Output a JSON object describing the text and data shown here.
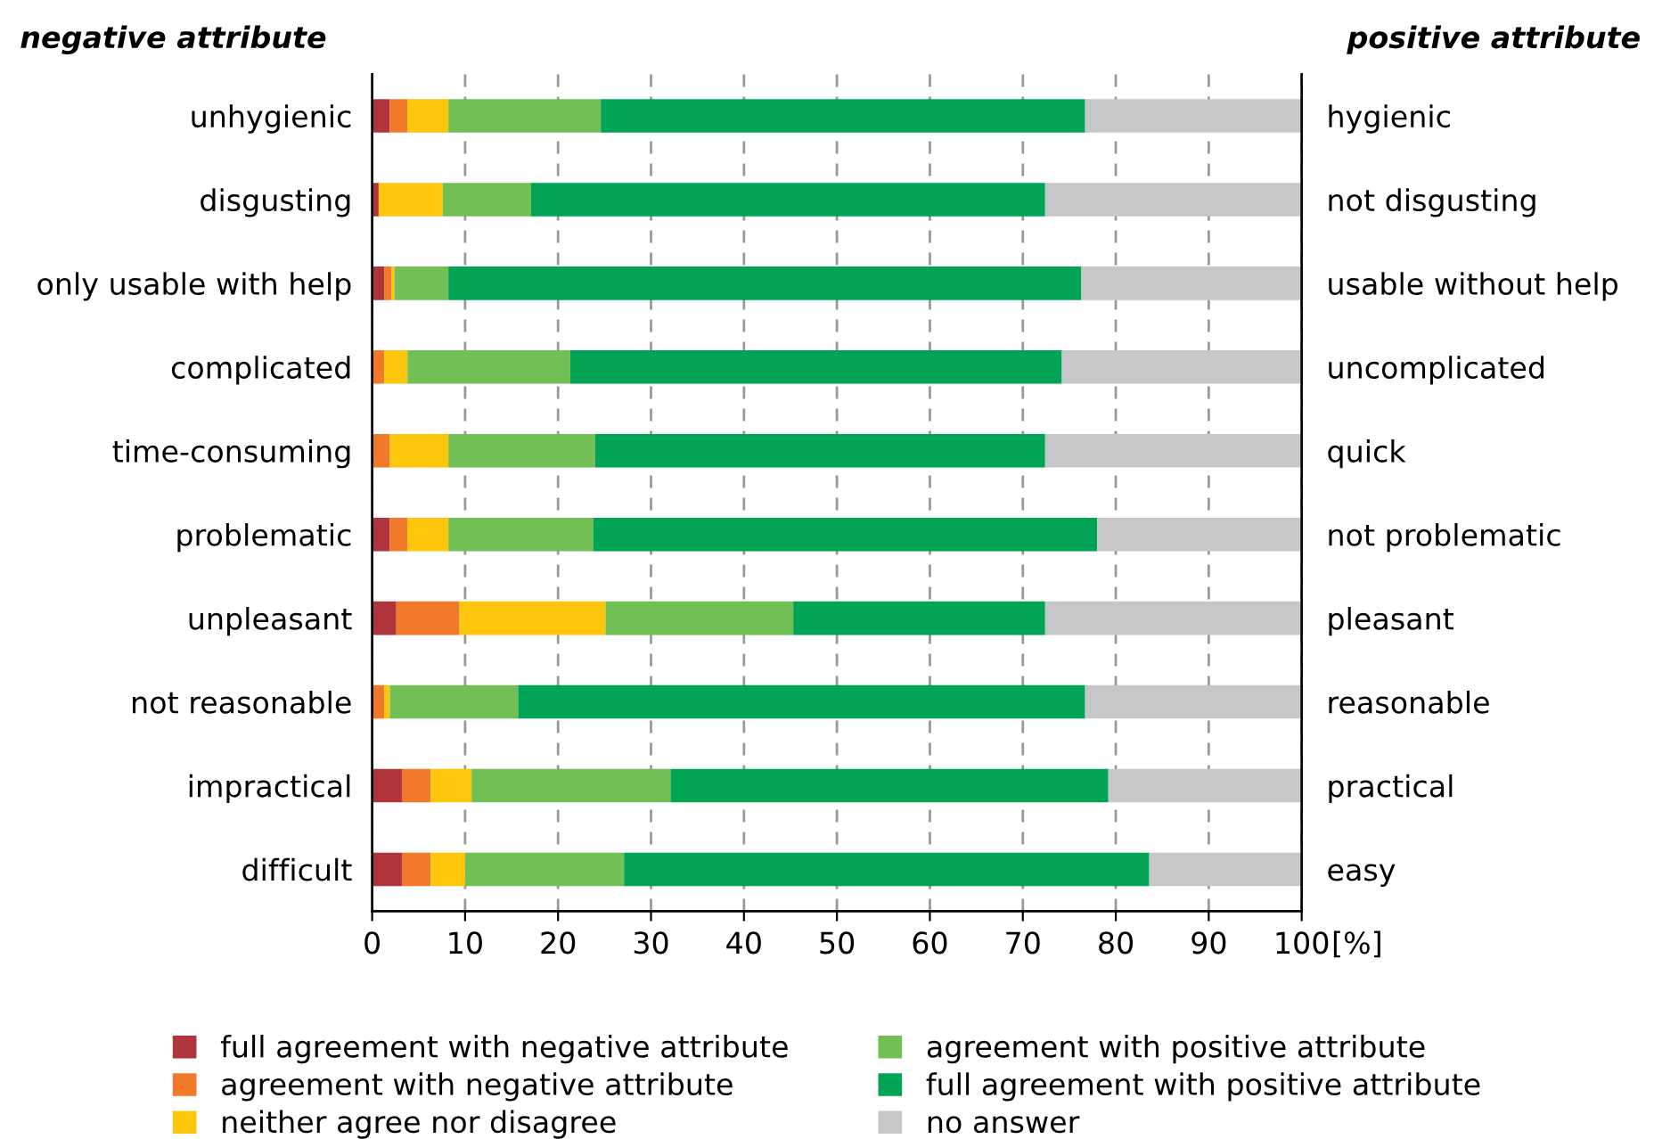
{
  "chart_data": {
    "type": "bar",
    "orientation": "horizontal",
    "stacked": true,
    "ylabel": "negative attribute",
    "y2label": "positive attribute",
    "xlabel": "[%]",
    "categories": [
      "unhygienic",
      "disgusting",
      "only usable with help",
      "complicated",
      "time-consuming",
      "problematic",
      "unpleasant",
      "not reasonable",
      "impractical",
      "difficult"
    ],
    "y2_categories": [
      "hygienic",
      "not disgusting",
      "usable without help",
      "uncomplicated",
      "quick",
      "not problematic",
      "pleasant",
      "reasonable",
      "practical",
      "easy"
    ],
    "series": [
      {
        "name": "full agreement with negative attribute",
        "color": "#b0343c",
        "values": [
          1.9,
          0.7,
          1.3,
          0,
          0,
          1.9,
          2.6,
          0,
          3.2,
          3.2
        ]
      },
      {
        "name": "agreement with negative attribute",
        "color": "#f07a2a",
        "values": [
          1.9,
          0,
          0.8,
          1.3,
          1.9,
          1.9,
          6.8,
          1.3,
          3.1,
          3.1
        ]
      },
      {
        "name": "neither agree nor disagree",
        "color": "#fdc60a",
        "values": [
          4.4,
          6.9,
          0.3,
          2.5,
          6.3,
          4.4,
          15.7,
          0.6,
          4.4,
          3.7
        ]
      },
      {
        "name": "agreement with positive attribute",
        "color": "#72bf56",
        "values": [
          16.4,
          9.5,
          5.8,
          17.5,
          15.8,
          15.6,
          20.2,
          13.8,
          21.4,
          17.1
        ]
      },
      {
        "name": "full agreement with positive attribute",
        "color": "#00a454",
        "values": [
          52.1,
          55.3,
          68.1,
          52.9,
          48.4,
          54.2,
          27.1,
          61.0,
          47.1,
          56.5
        ]
      },
      {
        "name": "no answer",
        "color": "#c6c7c9",
        "values": [
          23.3,
          27.6,
          23.7,
          25.8,
          27.6,
          22.0,
          27.6,
          23.3,
          20.8,
          16.4
        ]
      }
    ],
    "xlim": [
      0,
      100
    ],
    "xticks": [
      0,
      10,
      20,
      30,
      40,
      50,
      60,
      70,
      80,
      90,
      100
    ],
    "grid": "x",
    "legend": "bottom"
  }
}
